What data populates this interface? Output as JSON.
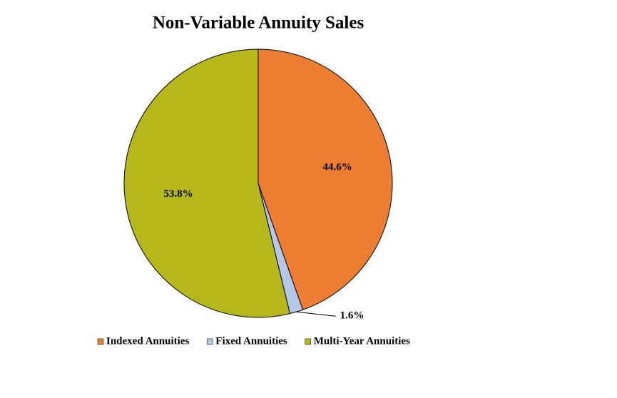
{
  "chart_data": {
    "type": "pie",
    "title": "Non-Variable Annuity Sales",
    "categories": [
      "Indexed Annuities",
      "Fixed Annuities",
      "Multi-Year Annuities"
    ],
    "values": [
      44.6,
      1.6,
      53.8
    ],
    "value_labels": [
      "44.6%",
      "1.6%",
      "53.8%"
    ],
    "colors": [
      "#ED7D31",
      "#B4C7E7",
      "#B5B71A"
    ],
    "legend": "bottom"
  }
}
